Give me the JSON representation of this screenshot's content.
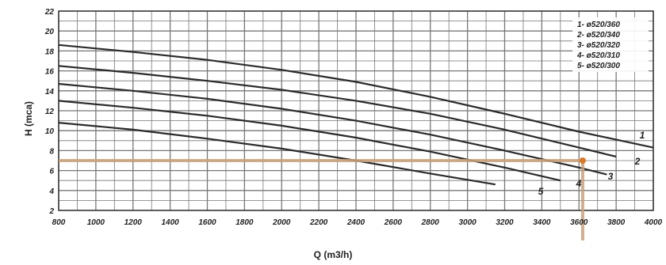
{
  "chart_data": {
    "type": "line",
    "title": "",
    "xlabel": "Q (m3/h)",
    "ylabel": "H (mca)",
    "xlim": [
      800,
      4000
    ],
    "ylim": [
      2,
      22
    ],
    "grid": true,
    "x_ticks": [
      "800",
      "1000",
      "1200",
      "1400",
      "1600",
      "1800",
      "2000",
      "2200",
      "2400",
      "2600",
      "2800",
      "3000",
      "3200",
      "3400",
      "3600",
      "3800",
      "4000"
    ],
    "y_ticks": [
      "2",
      "4",
      "6",
      "8",
      "10",
      "12",
      "14",
      "16",
      "18",
      "20",
      "22"
    ],
    "legend": {
      "placement": "top-right",
      "entries": [
        "1- ø520/360",
        "2- ø520/340",
        "3- ø520/320",
        "4- ø520/310",
        "5- ø520/300"
      ]
    },
    "series": [
      {
        "name": "1",
        "x": [
          800,
          1200,
          1600,
          2000,
          2400,
          2800,
          3200,
          3600,
          4000
        ],
        "y": [
          18.6,
          17.9,
          17.1,
          16.1,
          14.9,
          13.4,
          11.7,
          9.9,
          8.3
        ]
      },
      {
        "name": "2",
        "x": [
          800,
          1200,
          1600,
          2000,
          2400,
          2800,
          3200,
          3600,
          3800
        ],
        "y": [
          16.5,
          15.8,
          15.0,
          14.1,
          13.0,
          11.7,
          10.1,
          8.3,
          7.4
        ]
      },
      {
        "name": "3",
        "x": [
          800,
          1200,
          1600,
          2000,
          2400,
          2800,
          3200,
          3600,
          3750
        ],
        "y": [
          14.7,
          14.0,
          13.2,
          12.2,
          11.0,
          9.6,
          8.0,
          6.3,
          5.6
        ]
      },
      {
        "name": "4",
        "x": [
          800,
          1200,
          1600,
          2000,
          2400,
          2800,
          3200,
          3500
        ],
        "y": [
          13.0,
          12.3,
          11.5,
          10.5,
          9.3,
          7.9,
          6.3,
          5.0
        ]
      },
      {
        "name": "5",
        "x": [
          800,
          1200,
          1600,
          2000,
          2400,
          2800,
          3150
        ],
        "y": [
          10.8,
          10.1,
          9.2,
          8.2,
          7.0,
          5.7,
          4.6
        ]
      }
    ],
    "curve_labels": [
      "1",
      "2",
      "3",
      "4",
      "5"
    ],
    "annotations": [
      {
        "type": "operating-point",
        "x": 3620,
        "y": 7.0,
        "color": "#c9a27a"
      }
    ],
    "colors": {
      "curve": "#2b2b2b",
      "grid": "#777777",
      "highlight": "#c9a27a",
      "highlight_point": "#d87a2a"
    }
  }
}
